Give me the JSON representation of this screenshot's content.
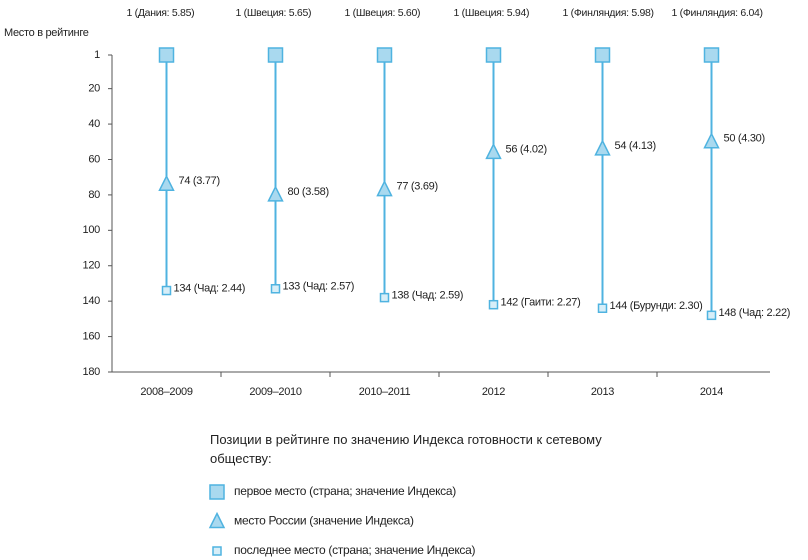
{
  "chart_data": {
    "type": "dumbbell",
    "y_label": "Место в рейтинге",
    "categories": [
      "2008–2009",
      "2009–2010",
      "2010–2011",
      "2012",
      "2013",
      "2014"
    ],
    "ylim": [
      1,
      180
    ],
    "y_inverted": true,
    "yticks": [
      1,
      20,
      40,
      60,
      80,
      100,
      120,
      140,
      160,
      180
    ],
    "legend_title": "Позиции в рейтинге по значению Индекса готовности к сетевому обществу:",
    "series": [
      {
        "name": "первое место (страна; значение Индекса)",
        "marker": "big-square",
        "color": "#4fb3e0",
        "values": [
          1,
          1,
          1,
          1,
          1,
          1
        ],
        "value_labels": [
          "1 (Дания: 5.85)",
          "1 (Швеция: 5.65)",
          "1 (Швеция: 5.60)",
          "1 (Швеция: 5.94)",
          "1 (Финляндия: 5.98)",
          "1 (Финляндия: 6.04)"
        ]
      },
      {
        "name": "место России (значение Индекса)",
        "marker": "triangle",
        "color": "#4fb3e0",
        "values": [
          74,
          80,
          77,
          56,
          54,
          50
        ],
        "value_labels": [
          "74 (3.77)",
          "80 (3.58)",
          "77 (3.69)",
          "56 (4.02)",
          "54 (4.13)",
          "50 (4.30)"
        ]
      },
      {
        "name": "последнее место (страна; значение Индекса)",
        "marker": "small-square",
        "color": "#4fb3e0",
        "values": [
          134,
          133,
          138,
          142,
          144,
          148
        ],
        "value_labels": [
          "134 (Чад: 2.44)",
          "133 (Чад: 2.57)",
          "138 (Чад: 2.59)",
          "142 (Гаити: 2.27)",
          "144 (Бурунди: 2.30)",
          "148 (Чад: 2.22)"
        ]
      }
    ]
  }
}
